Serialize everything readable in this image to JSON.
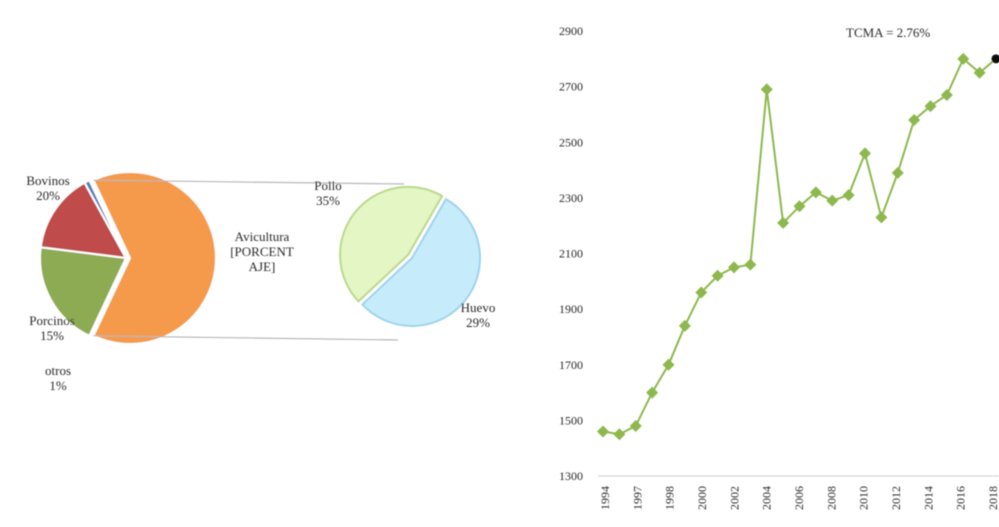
{
  "chart_data": [
    {
      "type": "pie",
      "subtype": "bar-of-pie",
      "slices": [
        {
          "label": "Avicultura [PORCENTAJE]",
          "label_lines": [
            "Avicultura",
            "[PORCENT",
            "AJE]"
          ],
          "value_text": "",
          "value": 64,
          "color": "#f59a4c"
        },
        {
          "label": "Bovinos",
          "label_lines": [
            "Bovinos"
          ],
          "value_text": "20%",
          "value": 20,
          "color": "#8cab52"
        },
        {
          "label": "Porcinos",
          "label_lines": [
            "Porcinos"
          ],
          "value_text": "15%",
          "value": 15,
          "color": "#bf4b4b"
        },
        {
          "label": "otros",
          "label_lines": [
            "otros"
          ],
          "value_text": "1%",
          "value": 1,
          "color": "#4f81bd"
        }
      ],
      "breakdown": {
        "of": "Avicultura [PORCENTAJE]",
        "slices": [
          {
            "label": "Pollo",
            "value_text": "35%",
            "value": 35,
            "color": "#c6ecfb"
          },
          {
            "label": "Huevo",
            "value_text": "29%",
            "value": 29,
            "color": "#e3f6c4"
          }
        ]
      }
    },
    {
      "type": "line",
      "title": "",
      "annotation": "TCMA = 2.76%",
      "x": [
        1994,
        1995,
        1996,
        1997,
        1998,
        1999,
        2000,
        2001,
        2002,
        2003,
        2004,
        2005,
        2006,
        2007,
        2008,
        2009,
        2010,
        2011,
        2012,
        2013,
        2014,
        2015,
        2016,
        2017,
        2018
      ],
      "series": [
        {
          "values": [
            1460,
            1450,
            1480,
            1600,
            1700,
            1840,
            1960,
            2020,
            2050,
            2060,
            2690,
            2210,
            2270,
            2320,
            2290,
            2310,
            2460,
            2230,
            2390,
            2580,
            2630,
            2670,
            2800,
            2750,
            2800
          ],
          "color": "#8db84e",
          "last_point_color": "#111111"
        }
      ],
      "x_tick_labels": [
        "1994",
        "1997",
        "1998",
        "2000",
        "2002",
        "2004",
        "2006",
        "2008",
        "2010",
        "2012",
        "2014",
        "2016",
        "2018"
      ],
      "y_ticks": [
        1300,
        1500,
        1700,
        1900,
        2100,
        2300,
        2500,
        2700,
        2900
      ],
      "ylim": [
        1300,
        2900
      ],
      "xlabel": "",
      "ylabel": "",
      "grid": false
    }
  ]
}
